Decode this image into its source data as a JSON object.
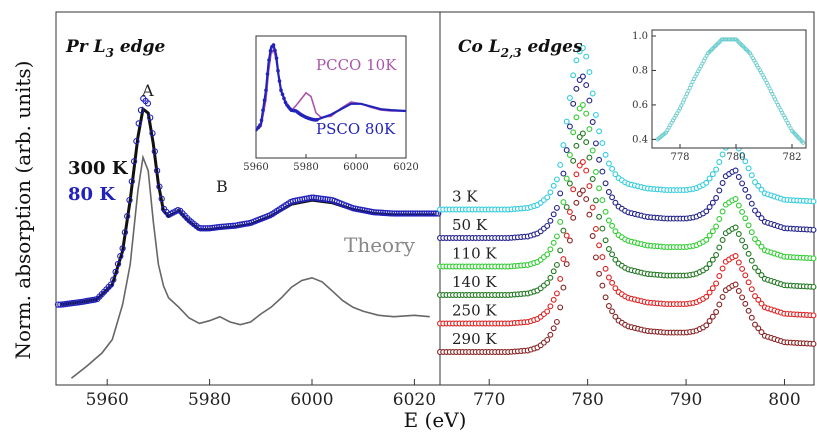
{
  "y_label": "Norm. absorption (arb. units)",
  "x_label": "E (eV)",
  "chart_data": [
    {
      "type": "line",
      "title": "Pr L3 edge",
      "title_parts": {
        "base": "Pr L",
        "sub": "3",
        "tail": " edge"
      },
      "xlabel": "E (eV)",
      "ylabel": "Norm. absorption (arb. units)",
      "xlim": [
        5950,
        6025
      ],
      "xticks": [
        5960,
        5980,
        6000,
        6020
      ],
      "annotations": [
        "A",
        "B",
        "Theory"
      ],
      "legend": [
        {
          "name": "300 K",
          "color": "#111111"
        },
        {
          "name": "80 K",
          "color": "#2222bb"
        }
      ],
      "series": [
        {
          "name": "300 K",
          "color": "#111111",
          "style": "filled-circles",
          "x": [
            5951,
            5955,
            5958,
            5961,
            5963,
            5964.5,
            5966,
            5967,
            5968,
            5969,
            5970,
            5971,
            5972,
            5974,
            5976,
            5978,
            5980,
            5982,
            5985,
            5988,
            5992,
            5996,
            6000,
            6004,
            6008,
            6012,
            6016,
            6020,
            6024
          ],
          "y": [
            0.0,
            0.02,
            0.04,
            0.15,
            0.4,
            0.78,
            1.25,
            1.46,
            1.43,
            1.2,
            0.9,
            0.7,
            0.66,
            0.7,
            0.62,
            0.56,
            0.56,
            0.57,
            0.58,
            0.6,
            0.66,
            0.75,
            0.78,
            0.76,
            0.71,
            0.68,
            0.67,
            0.67,
            0.67
          ]
        },
        {
          "name": "80 K",
          "color": "#2222bb",
          "style": "open-circles",
          "x": [
            5951,
            5955,
            5958,
            5961,
            5963,
            5964.5,
            5966,
            5967,
            5968,
            5969,
            5970,
            5971,
            5972,
            5974,
            5976,
            5978,
            5980,
            5982,
            5985,
            5988,
            5992,
            5996,
            6000,
            6004,
            6008,
            6012,
            6016,
            6020,
            6024
          ],
          "y": [
            0.0,
            0.02,
            0.04,
            0.16,
            0.42,
            0.82,
            1.32,
            1.54,
            1.5,
            1.24,
            0.92,
            0.72,
            0.67,
            0.71,
            0.63,
            0.57,
            0.57,
            0.58,
            0.59,
            0.61,
            0.67,
            0.77,
            0.8,
            0.78,
            0.72,
            0.69,
            0.68,
            0.68,
            0.68
          ]
        },
        {
          "name": "Theory",
          "color": "#666666",
          "style": "line",
          "x": [
            5953,
            5956,
            5959,
            5961,
            5963,
            5964.5,
            5966,
            5967,
            5968,
            5969,
            5970,
            5971,
            5972,
            5974,
            5976,
            5978,
            5980,
            5982,
            5984,
            5986,
            5988,
            5990,
            5992,
            5994,
            5996,
            5998,
            6000,
            6002,
            6004,
            6006,
            6008,
            6010,
            6013,
            6016,
            6020,
            6023
          ],
          "y": [
            -0.55,
            -0.46,
            -0.36,
            -0.26,
            0.0,
            0.3,
            0.85,
            1.1,
            1.0,
            0.62,
            0.3,
            0.14,
            0.05,
            -0.02,
            -0.1,
            -0.14,
            -0.12,
            -0.09,
            -0.13,
            -0.15,
            -0.13,
            -0.07,
            -0.02,
            0.05,
            0.13,
            0.18,
            0.2,
            0.17,
            0.1,
            0.03,
            -0.02,
            -0.05,
            -0.08,
            -0.09,
            -0.08,
            -0.09
          ]
        }
      ],
      "inset": {
        "type": "line",
        "xlim": [
          5960,
          6020
        ],
        "ylim": [
          0.4,
          1.75
        ],
        "xticks": [
          5960,
          5980,
          6000,
          6020
        ],
        "series": [
          {
            "name": "PCCO 10K",
            "color": "#aa55aa",
            "x": [
              5960,
              5962,
              5964,
              5965,
              5966,
              5967,
              5968,
              5969,
              5970,
              5972,
              5974,
              5976,
              5978,
              5980,
              5982,
              5984,
              5986,
              5990,
              5994,
              5998,
              6002,
              6006,
              6010,
              6014,
              6020
            ],
            "y": [
              0.7,
              0.75,
              1.05,
              1.35,
              1.55,
              1.6,
              1.5,
              1.3,
              1.15,
              1.0,
              0.92,
              0.98,
              1.05,
              1.12,
              1.08,
              0.9,
              0.85,
              0.86,
              0.95,
              1.02,
              1.0,
              0.96,
              0.93,
              0.92,
              0.92
            ]
          },
          {
            "name": "PSCO 80K",
            "color": "#2222bb",
            "x": [
              5960,
              5962,
              5964,
              5965,
              5966,
              5967,
              5968,
              5969,
              5970,
              5972,
              5974,
              5976,
              5978,
              5980,
              5982,
              5984,
              5986,
              5990,
              5994,
              5998,
              6002,
              6006,
              6010,
              6014,
              6020
            ],
            "y": [
              0.7,
              0.78,
              1.15,
              1.45,
              1.62,
              1.65,
              1.55,
              1.32,
              1.15,
              1.0,
              0.93,
              0.92,
              0.88,
              0.85,
              0.83,
              0.82,
              0.84,
              0.88,
              0.94,
              1.0,
              1.0,
              0.97,
              0.94,
              0.93,
              0.92
            ]
          }
        ]
      }
    },
    {
      "type": "line",
      "title": "Co L2,3 edges",
      "title_parts": {
        "base": "Co L",
        "sub": "2,3",
        "tail": " edges"
      },
      "xlabel": "E (eV)",
      "xlim": [
        765,
        803
      ],
      "xticks": [
        770,
        780,
        790,
        800
      ],
      "series": [
        {
          "name": "3 K",
          "offset": 5,
          "color": "#33ccdd"
        },
        {
          "name": "50 K",
          "offset": 4,
          "color": "#22228a"
        },
        {
          "name": "110 K",
          "offset": 3,
          "color": "#33cc33"
        },
        {
          "name": "140 K",
          "offset": 2,
          "color": "#227722"
        },
        {
          "name": "250 K",
          "offset": 1,
          "color": "#dd2222"
        },
        {
          "name": "290 K",
          "offset": 0,
          "color": "#882222"
        }
      ],
      "shared_profile": {
        "x": [
          765,
          768,
          770,
          772,
          774,
          775,
          776,
          777,
          777.5,
          778,
          778.5,
          779,
          779.5,
          780,
          780.5,
          781,
          782,
          783,
          784,
          786,
          788,
          790,
          791,
          792,
          793,
          794,
          795,
          796,
          797,
          798,
          800,
          803
        ],
        "y": [
          0.0,
          0.0,
          0.0,
          0.0,
          0.01,
          0.03,
          0.08,
          0.2,
          0.38,
          0.6,
          0.82,
          0.96,
          1.0,
          0.92,
          0.72,
          0.52,
          0.3,
          0.2,
          0.16,
          0.13,
          0.12,
          0.12,
          0.13,
          0.16,
          0.24,
          0.38,
          0.42,
          0.3,
          0.17,
          0.1,
          0.06,
          0.05
        ]
      },
      "inset": {
        "type": "line",
        "xlim": [
          777,
          782.5
        ],
        "ylim": [
          0.35,
          1.0
        ],
        "xticks": [
          778,
          780,
          782
        ],
        "yticks": [
          0.4,
          0.6,
          0.8,
          1.0
        ],
        "x": [
          777.2,
          777.5,
          778,
          778.5,
          779,
          779.5,
          780,
          780.5,
          781,
          781.5,
          782,
          782.4
        ],
        "y": [
          0.4,
          0.44,
          0.58,
          0.75,
          0.9,
          0.98,
          0.98,
          0.9,
          0.76,
          0.6,
          0.45,
          0.38
        ],
        "color": "#66cccc"
      }
    }
  ]
}
